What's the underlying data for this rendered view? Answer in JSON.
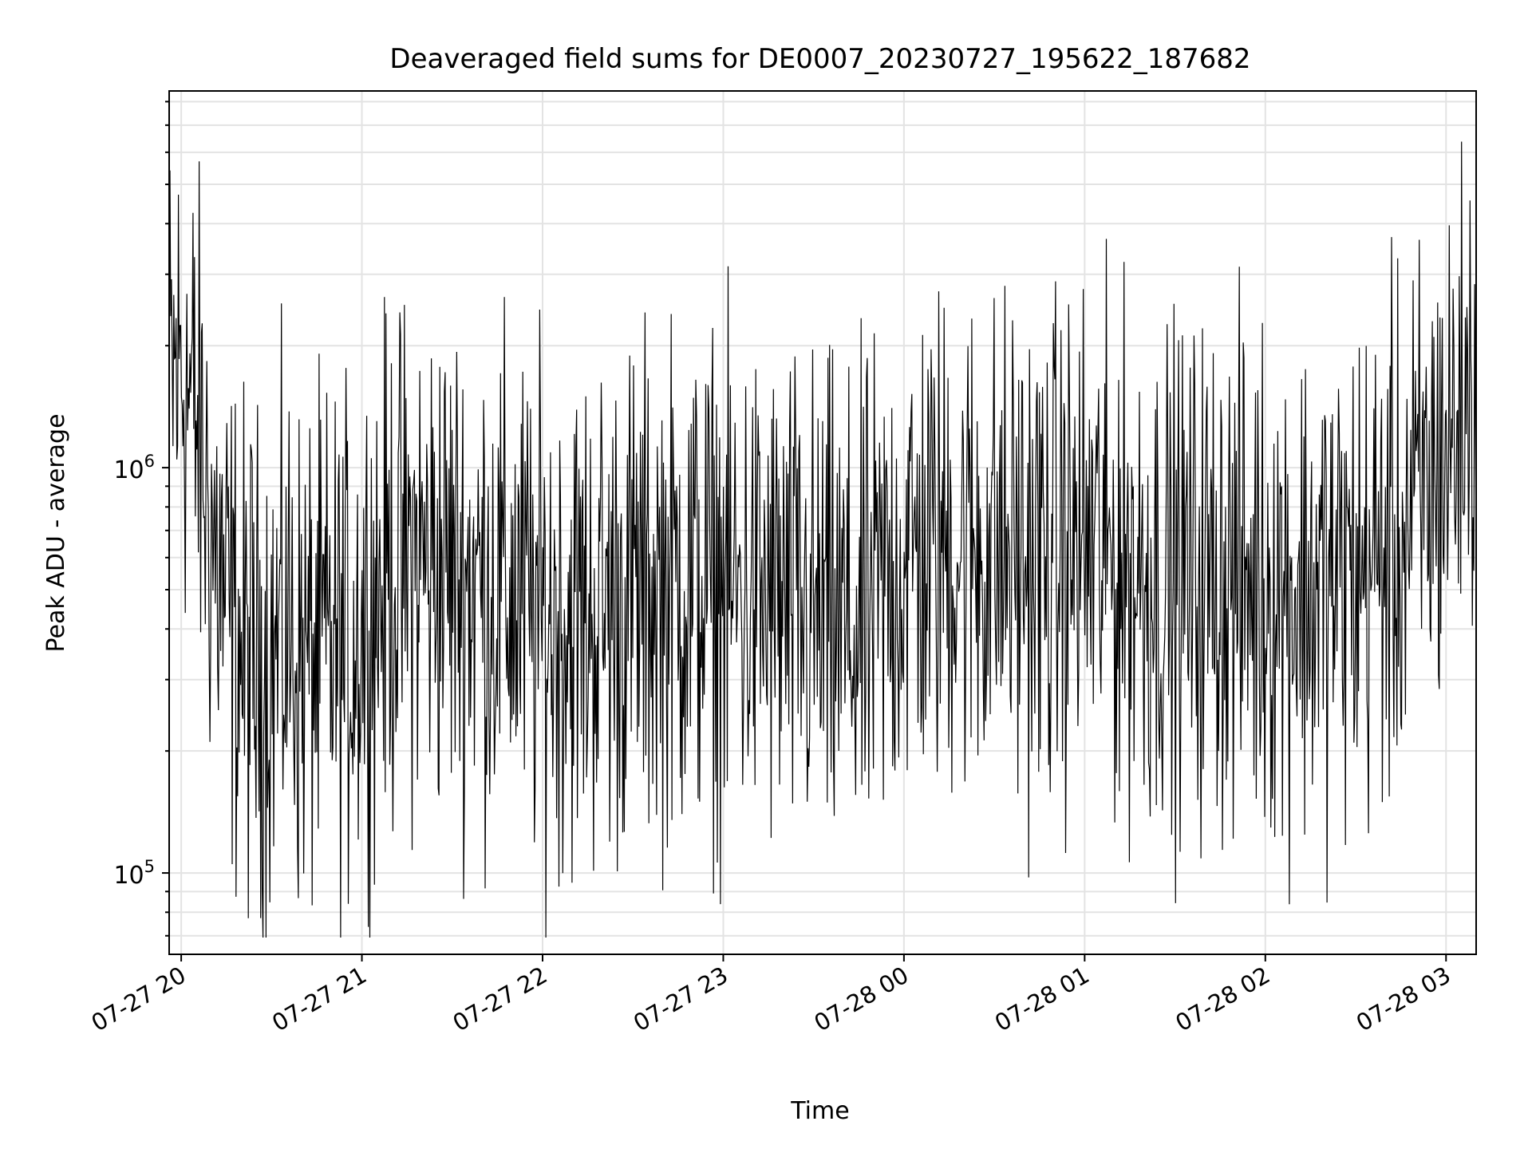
{
  "chart_data": {
    "type": "line",
    "title": "Deaveraged field sums for DE0007_20230727_195622_187682",
    "xlabel": "Time",
    "ylabel": "Peak ADU - average",
    "x_scale": "time",
    "y_scale": "log",
    "xlim": [
      "2023-07-27 19:56",
      "2023-07-28 03:10"
    ],
    "ylim": [
      63000,
      8500000
    ],
    "x_ticks": [
      "07-27 20",
      "07-27 21",
      "07-27 22",
      "07-27 23",
      "07-28 00",
      "07-28 01",
      "07-28 02",
      "07-28 03"
    ],
    "y_tick_base": "10",
    "y_ticks": [
      {
        "value": 100000,
        "exponent": "5"
      },
      {
        "value": 1000000,
        "exponent": "6"
      }
    ],
    "grid": true,
    "line_color": "#000000",
    "series": [
      {
        "x": [
          "2023-07-27 19:56",
          "2023-07-27 20:00",
          "2023-07-27 20:05",
          "2023-07-27 20:10",
          "2023-07-27 20:15",
          "2023-07-27 20:20",
          "2023-07-27 20:25",
          "2023-07-27 20:30",
          "2023-07-27 20:35",
          "2023-07-27 20:40",
          "2023-07-27 20:45",
          "2023-07-27 20:50",
          "2023-07-27 20:55",
          "2023-07-27 21:00",
          "2023-07-27 21:10",
          "2023-07-27 21:20",
          "2023-07-27 21:30",
          "2023-07-27 21:40",
          "2023-07-27 21:50",
          "2023-07-27 22:00",
          "2023-07-27 22:15",
          "2023-07-27 22:30",
          "2023-07-27 22:45",
          "2023-07-27 23:00",
          "2023-07-27 23:15",
          "2023-07-27 23:30",
          "2023-07-27 23:45",
          "2023-07-28 00:00",
          "2023-07-28 00:15",
          "2023-07-28 00:30",
          "2023-07-28 00:45",
          "2023-07-28 01:00",
          "2023-07-28 01:15",
          "2023-07-28 01:30",
          "2023-07-28 01:45",
          "2023-07-28 02:00",
          "2023-07-28 02:15",
          "2023-07-28 02:30",
          "2023-07-28 02:45",
          "2023-07-28 03:00",
          "2023-07-28 03:10"
        ],
        "y": [
          1600000,
          1800000,
          1300000,
          700000,
          450000,
          350000,
          320000,
          330000,
          400000,
          330000,
          340000,
          360000,
          350000,
          420000,
          550000,
          600000,
          560000,
          520000,
          480000,
          420000,
          430000,
          480000,
          520000,
          500000,
          460000,
          420000,
          380000,
          600000,
          650000,
          620000,
          580000,
          640000,
          560000,
          520000,
          540000,
          520000,
          500000,
          540000,
          650000,
          1100000,
          1600000
        ]
      }
    ]
  }
}
